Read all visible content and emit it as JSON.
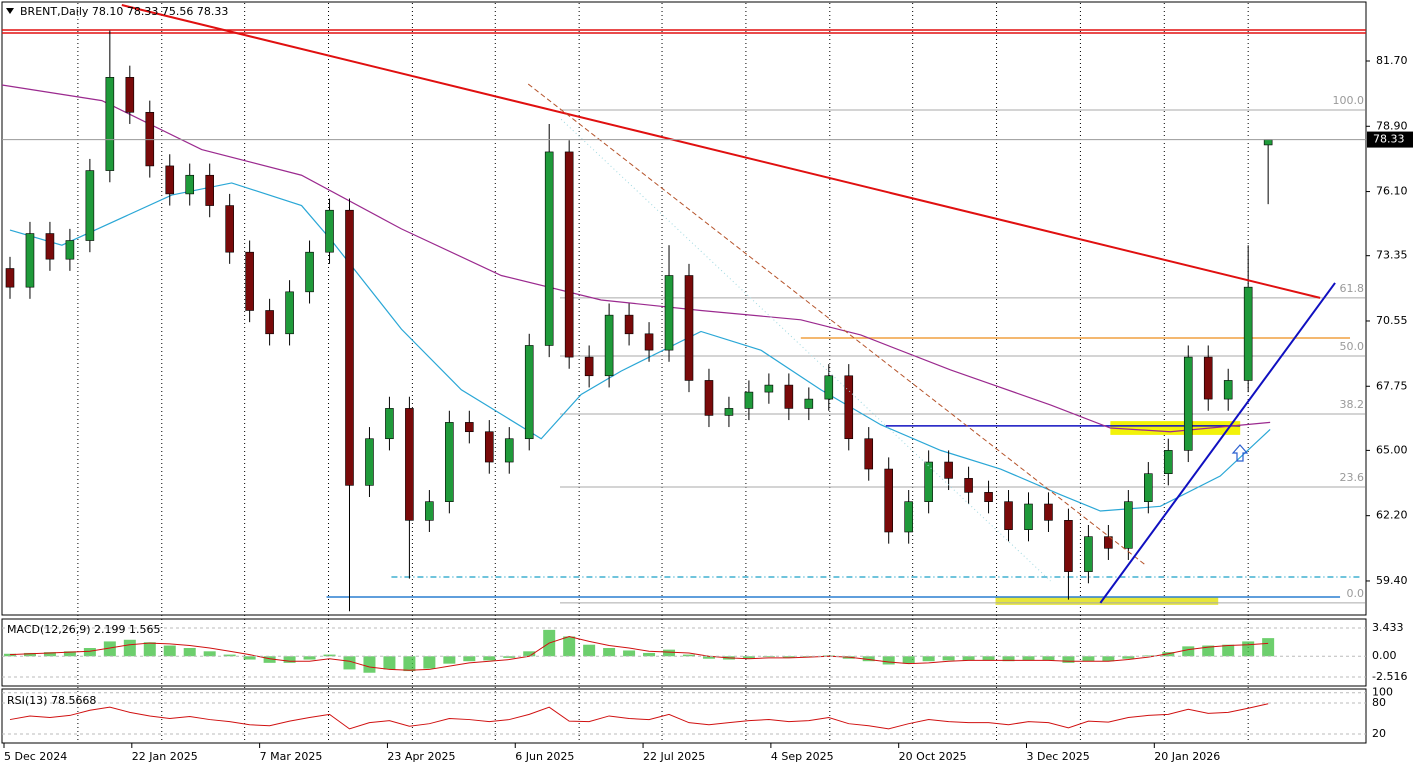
{
  "chart_data": {
    "type": "candlestick",
    "header": "BRENT,Daily  78.10 78.33 75.56 78.33",
    "up_color": "#1f9a3a",
    "down_color": "#7a0a0a",
    "open": [
      72.8,
      72.0,
      74.3,
      73.2,
      74.0,
      77.0,
      81.0,
      79.5,
      77.2,
      76.0,
      76.8,
      75.5,
      73.5,
      71.0,
      70.0,
      71.8,
      73.5,
      75.3,
      63.5,
      65.5,
      66.8,
      62.0,
      62.8,
      66.2,
      65.8,
      64.5,
      65.5,
      69.5,
      77.8,
      69.0,
      68.2,
      70.8,
      70.0,
      69.3,
      72.5,
      68.0,
      66.5,
      66.8,
      67.5,
      67.8,
      66.8,
      67.2,
      68.2,
      65.5,
      64.2,
      61.5,
      62.8,
      64.5,
      63.8,
      63.2,
      62.8,
      61.6,
      62.7,
      62.0,
      59.8,
      61.3,
      60.8,
      62.8,
      64.0,
      65.0,
      69.0,
      67.2,
      68.0,
      78.1
    ],
    "high": [
      73.3,
      74.8,
      74.8,
      74.5,
      77.5,
      83.0,
      81.5,
      80.0,
      77.7,
      77.3,
      77.3,
      76.0,
      74.0,
      71.5,
      72.3,
      74.0,
      75.8,
      75.8,
      66.0,
      67.3,
      67.3,
      63.3,
      66.7,
      66.7,
      66.3,
      66.0,
      70.0,
      79.0,
      78.3,
      69.5,
      71.3,
      71.3,
      70.5,
      73.8,
      73.0,
      68.5,
      67.3,
      68.0,
      68.3,
      68.3,
      67.7,
      68.7,
      68.7,
      66.0,
      64.7,
      63.3,
      65.0,
      65.0,
      64.3,
      63.7,
      63.3,
      63.2,
      63.2,
      62.5,
      61.8,
      61.8,
      63.3,
      64.5,
      65.5,
      69.5,
      69.5,
      68.5,
      73.8,
      78.33
    ],
    "low": [
      71.5,
      71.5,
      72.7,
      72.7,
      73.5,
      76.5,
      79.0,
      76.7,
      75.5,
      75.5,
      75.0,
      73.0,
      70.5,
      69.5,
      69.5,
      71.3,
      73.0,
      58.1,
      63.0,
      65.0,
      59.5,
      61.5,
      62.3,
      65.3,
      64.0,
      64.0,
      65.0,
      69.0,
      68.5,
      67.7,
      67.7,
      69.5,
      68.8,
      68.8,
      67.5,
      66.0,
      66.0,
      66.3,
      67.0,
      66.3,
      66.3,
      66.7,
      65.0,
      63.7,
      61.0,
      61.0,
      62.3,
      63.3,
      62.7,
      62.3,
      61.1,
      61.1,
      61.5,
      58.6,
      59.3,
      60.3,
      60.3,
      62.3,
      63.5,
      64.5,
      66.7,
      66.7,
      67.5,
      75.56
    ],
    "close": [
      72.0,
      74.3,
      73.2,
      74.0,
      77.0,
      81.0,
      79.5,
      77.2,
      76.0,
      76.8,
      75.5,
      73.5,
      71.0,
      70.0,
      71.8,
      73.5,
      75.3,
      63.5,
      65.5,
      66.8,
      62.0,
      62.8,
      66.2,
      65.8,
      64.5,
      65.5,
      69.5,
      77.8,
      69.0,
      68.2,
      70.8,
      70.0,
      69.3,
      72.5,
      68.0,
      66.5,
      66.8,
      67.5,
      67.8,
      66.8,
      67.2,
      68.2,
      65.5,
      64.2,
      61.5,
      62.8,
      64.5,
      63.8,
      63.2,
      62.8,
      61.6,
      62.7,
      62.0,
      59.8,
      61.3,
      60.8,
      62.8,
      64.0,
      65.0,
      69.0,
      67.2,
      68.0,
      72.0,
      78.33
    ],
    "xlim": [
      -0.4,
      67.9
    ],
    "ylim": [
      57.94,
      84.23
    ],
    "yticks": [
      {
        "value": 81.7,
        "label": "81.70"
      },
      {
        "value": 78.9,
        "label": "78.90"
      },
      {
        "value": 76.1,
        "label": "76.10"
      },
      73.35,
      70.55,
      67.75,
      {
        "value": 65,
        "label": "65.00"
      },
      {
        "value": 62.2,
        "label": "62.20"
      },
      {
        "value": 59.4,
        "label": "59.40"
      }
    ],
    "last_price": 78.33,
    "xticks": [
      {
        "value": -0.3,
        "label": "5 Dec 2024"
      },
      {
        "value": 6.1,
        "label": "22 Jan 2025"
      },
      {
        "value": 12.5,
        "label": "7 Mar 2025"
      },
      {
        "value": 18.9,
        "label": "23 Apr 2025"
      },
      {
        "value": 25.3,
        "label": "6 Jun 2025"
      },
      {
        "value": 31.7,
        "label": "22 Jul 2025"
      },
      {
        "value": 38.1,
        "label": "4 Sep 2025"
      },
      {
        "value": 44.5,
        "label": "20 Oct 2025"
      },
      {
        "value": 50.9,
        "label": "3 Dec 2025"
      },
      {
        "value": 57.3,
        "label": "20 Jan 2026"
      }
    ],
    "xgrid": [
      3.4,
      7.6,
      11.75,
      15.95,
      20.15,
      24.3,
      28.5,
      32.65,
      36.85,
      41.05,
      45.2,
      49.4,
      53.6,
      57.8,
      62.0
    ],
    "fast_ma": {
      "color": "#2aa7d6",
      "x": [
        0,
        2.6,
        8.1,
        11.1,
        14.6,
        16.1,
        19.6,
        22.6,
        26.6,
        28.6,
        30.6,
        34.6,
        37.6,
        40.6,
        43.6,
        46.6,
        49.6,
        52.6,
        54.6,
        57.6,
        60.6,
        63.1
      ],
      "values": [
        74.45,
        73.8,
        75.95,
        76.47,
        75.5,
        74.0,
        70.2,
        67.6,
        65.5,
        67.4,
        68.4,
        70.1,
        69.3,
        67.6,
        66.1,
        65.0,
        64.2,
        63.1,
        62.4,
        62.6,
        63.9,
        65.9
      ]
    },
    "slow_ma": {
      "color": "#9b2a8f",
      "x": [
        -0.4,
        4.6,
        9.6,
        14.6,
        19.6,
        24.6,
        29.6,
        34.6,
        39.6,
        42.6,
        47.1,
        52.1,
        55.1,
        58.1,
        63.1
      ],
      "values": [
        80.67,
        80.0,
        77.9,
        76.8,
        74.5,
        72.5,
        71.45,
        71.0,
        70.6,
        69.95,
        68.45,
        66.95,
        65.96,
        65.8,
        66.2
      ]
    },
    "trendlines": [
      {
        "x": [
          5.6,
          65.6
        ],
        "values": [
          84.1,
          71.54
        ],
        "color": "#e01010",
        "style": "solid",
        "width": 2
      },
      {
        "x": [
          25.95,
          56.85
        ],
        "values": [
          80.71,
          60.09
        ],
        "color": "#b5532a",
        "style": "dashed",
        "width": 1
      },
      {
        "x": [
          27.6,
          52.1
        ],
        "values": [
          79.2,
          59.4
        ],
        "color": "#9fd8e0",
        "style": "dotted",
        "width": 1
      },
      {
        "x": [
          54.6,
          66.35
        ],
        "values": [
          58.46,
          72.18
        ],
        "color": "#1010c0",
        "style": "solid",
        "width": 2
      }
    ],
    "levels": [
      {
        "value": 83.03,
        "from": -0.4,
        "to": 67.9,
        "color": "#e01010",
        "style": "solid"
      },
      {
        "value": 82.9,
        "from": -0.4,
        "to": 67.9,
        "color": "#e01010",
        "style": "solid"
      },
      {
        "value": 66.05,
        "from": 43.85,
        "to": 61.6,
        "color": "#1010c0",
        "style": "solid"
      },
      {
        "value": 69.82,
        "from": 39.6,
        "to": 67.1,
        "color": "#f0a040",
        "style": "solid"
      },
      {
        "value": 58.71,
        "from": 15.85,
        "to": 66.6,
        "color": "#2a7fd0",
        "style": "solid"
      },
      {
        "value": 59.57,
        "from": 19.1,
        "to": 67.6,
        "color": "#40b0d0",
        "style": "dashdot"
      }
    ],
    "fib": [
      {
        "label": "100.0",
        "value": 79.6
      },
      {
        "label": "61.8",
        "value": 71.54
      },
      {
        "label": "50.0",
        "value": 69.05
      },
      {
        "label": "38.2",
        "value": 66.56
      },
      {
        "label": "23.6",
        "value": 63.43
      },
      {
        "label": "0.0",
        "value": 58.46
      }
    ],
    "zones": [
      {
        "from": 55.1,
        "to": 61.6,
        "low": 65.75,
        "high": 66.17,
        "color": "#f2f20a"
      },
      {
        "from": 49.35,
        "to": 60.5,
        "low": 58.46,
        "high": 58.63,
        "color": "#e6e63a"
      }
    ],
    "macd": {
      "label": "MACD(12,26,9) 2.199 1.565",
      "color": "#3cbf3c",
      "signal_color": "#d01010",
      "values": [
        0.3,
        0.4,
        0.5,
        0.6,
        1.0,
        1.8,
        2.0,
        1.7,
        1.3,
        1.0,
        0.6,
        0.2,
        -0.4,
        -0.8,
        -0.8,
        -0.4,
        0.2,
        -1.6,
        -2.0,
        -1.6,
        -1.8,
        -1.5,
        -0.9,
        -0.6,
        -0.5,
        -0.2,
        0.6,
        3.2,
        2.4,
        1.4,
        1.0,
        0.7,
        0.4,
        0.8,
        0.2,
        -0.3,
        -0.4,
        -0.3,
        -0.1,
        -0.2,
        -0.1,
        0.1,
        -0.3,
        -0.6,
        -1.0,
        -0.9,
        -0.6,
        -0.5,
        -0.5,
        -0.5,
        -0.6,
        -0.5,
        -0.5,
        -0.8,
        -0.6,
        -0.6,
        -0.3,
        0.1,
        0.5,
        1.2,
        1.3,
        1.4,
        1.8,
        2.199
      ],
      "signal": [
        0.2,
        0.3,
        0.4,
        0.5,
        0.6,
        1.0,
        1.4,
        1.6,
        1.5,
        1.3,
        1.0,
        0.6,
        0.2,
        -0.3,
        -0.6,
        -0.6,
        -0.3,
        -0.6,
        -1.3,
        -1.6,
        -1.7,
        -1.6,
        -1.2,
        -0.8,
        -0.6,
        -0.4,
        0.0,
        1.6,
        2.4,
        1.8,
        1.3,
        1.0,
        0.6,
        0.5,
        0.4,
        0.0,
        -0.2,
        -0.3,
        -0.2,
        -0.2,
        -0.1,
        0.0,
        -0.1,
        -0.4,
        -0.7,
        -0.9,
        -0.8,
        -0.6,
        -0.5,
        -0.5,
        -0.5,
        -0.5,
        -0.5,
        -0.6,
        -0.6,
        -0.6,
        -0.4,
        -0.1,
        0.3,
        0.8,
        1.1,
        1.3,
        1.4,
        1.565
      ],
      "ylim": [
        -3.61,
        4.52
      ],
      "yticks": [
        3.433,
        {
          "value": 0,
          "label": "0.00"
        },
        -2.516
      ]
    },
    "rsi": {
      "label": "RSI(13) 78.5668",
      "color": "#d01010",
      "values": [
        48,
        55,
        52,
        56,
        66,
        72,
        62,
        55,
        50,
        54,
        48,
        44,
        38,
        36,
        45,
        52,
        58,
        30,
        42,
        46,
        35,
        40,
        50,
        48,
        44,
        48,
        58,
        72,
        45,
        44,
        55,
        50,
        48,
        58,
        42,
        38,
        42,
        46,
        48,
        44,
        46,
        52,
        40,
        36,
        30,
        40,
        48,
        44,
        42,
        42,
        38,
        44,
        42,
        32,
        45,
        43,
        52,
        56,
        58,
        68,
        60,
        62,
        70,
        78.5668
      ],
      "ylim": [
        2.6,
        107.2
      ],
      "yticks": [
        100,
        80,
        20
      ]
    }
  }
}
